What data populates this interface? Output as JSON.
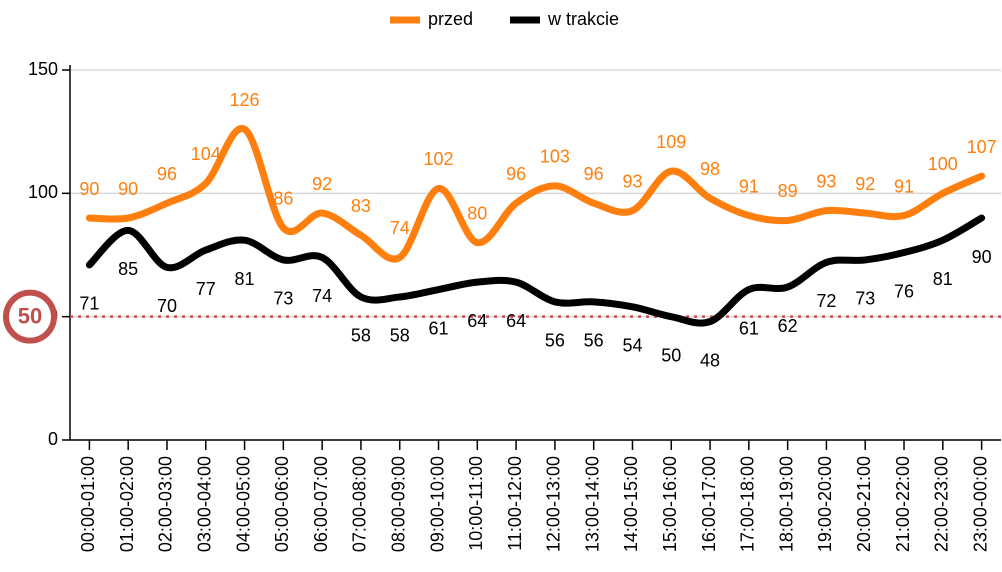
{
  "chart_data": {
    "type": "line",
    "categories": [
      "00:00-01:00",
      "01:00-02:00",
      "02:00-03:00",
      "03:00-04:00",
      "04:00-05:00",
      "05:00-06:00",
      "06:00-07:00",
      "07:00-08:00",
      "08:00-09:00",
      "09:00-10:00",
      "10:00-11:00",
      "11:00-12:00",
      "12:00-13:00",
      "13:00-14:00",
      "14:00-15:00",
      "15:00-16:00",
      "16:00-17:00",
      "17:00-18:00",
      "18:00-19:00",
      "19:00-20:00",
      "20:00-21:00",
      "21:00-22:00",
      "22:00-23:00",
      "23:00-00:00"
    ],
    "series": [
      {
        "name": "przed",
        "color": "#ff7f0e",
        "values": [
          90,
          90,
          96,
          104,
          126,
          86,
          92,
          83,
          74,
          102,
          80,
          96,
          103,
          96,
          93,
          109,
          98,
          91,
          89,
          93,
          92,
          91,
          100,
          107
        ]
      },
      {
        "name": "w trakcie",
        "color": "#000000",
        "values": [
          71,
          85,
          70,
          77,
          81,
          73,
          74,
          58,
          58,
          61,
          64,
          64,
          56,
          56,
          54,
          50,
          48,
          61,
          62,
          72,
          73,
          76,
          81,
          90
        ]
      }
    ],
    "ylim": [
      0,
      150
    ],
    "yticks": [
      0,
      50,
      100,
      150
    ],
    "grid": true,
    "reference_line": {
      "value": 50,
      "label": "50",
      "color": "#c0504d"
    },
    "legend": "top"
  }
}
